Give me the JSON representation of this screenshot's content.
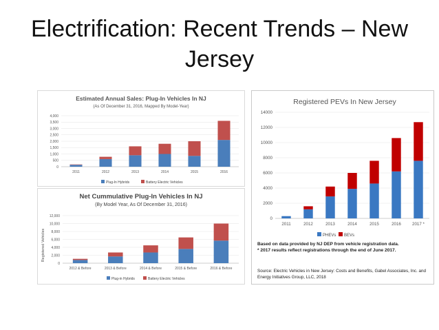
{
  "slide": {
    "title": "Electrification: Recent Trends – New Jersey"
  },
  "colors": {
    "phev": "#4a7ebb",
    "bev": "#c0504d",
    "reg_phev": "#3a78c2",
    "reg_bev": "#c00000"
  },
  "chart_data": [
    {
      "type": "bar",
      "stacked": true,
      "title": "Estimated Annual Sales: Plug-In Vehicles In NJ",
      "subtitle": "(As Of December 31, 2016, Mapped By Model-Year)",
      "categories": [
        "2011",
        "2012",
        "2013",
        "2014",
        "2015",
        "2016"
      ],
      "series": [
        {
          "name": "Plug-In Hybrids",
          "values": [
            150,
            600,
            900,
            1000,
            850,
            2100
          ]
        },
        {
          "name": "Battery Electric Vehicles",
          "values": [
            30,
            180,
            700,
            800,
            1150,
            1500
          ]
        }
      ],
      "ylim": [
        0,
        4000
      ],
      "yticks": [
        "0",
        "500",
        "1,000",
        "1,500",
        "2,000",
        "2,500",
        "3,000",
        "3,500",
        "4,000"
      ],
      "grid": true,
      "legend": "bottom"
    },
    {
      "type": "bar",
      "stacked": true,
      "title": "Net Cummulative Plug-In Vehicles In NJ",
      "subtitle": "(By Model Year, As Of December 31, 2016)",
      "ylabel": "Registered Vehicles",
      "categories": [
        "2012 & Before",
        "2013 & Before",
        "2014 & Before",
        "2015 & Before",
        "2016 & Before"
      ],
      "series": [
        {
          "name": "Plug-in Hybrids",
          "values": [
            800,
            1700,
            2700,
            3600,
            5700
          ]
        },
        {
          "name": "Battery Electric Vehicles",
          "values": [
            300,
            1000,
            1800,
            2900,
            4300
          ]
        }
      ],
      "ylim": [
        0,
        12000
      ],
      "yticks": [
        "0",
        "2,000",
        "4,000",
        "6,000",
        "8,000",
        "10,000",
        "12,000"
      ],
      "grid": true,
      "legend": "bottom"
    },
    {
      "type": "bar",
      "stacked": true,
      "title": "Registered PEVs In New Jersey",
      "categories": [
        "2011",
        "2012",
        "2013",
        "2014",
        "2015",
        "2016",
        "2017 *"
      ],
      "series": [
        {
          "name": "PHEVs",
          "values": [
            300,
            1200,
            2900,
            3900,
            4600,
            6200,
            7600
          ]
        },
        {
          "name": "BEVs",
          "values": [
            0,
            400,
            1300,
            2100,
            3000,
            4400,
            5100
          ]
        }
      ],
      "ylim": [
        0,
        14000
      ],
      "yticks": [
        "0",
        "2000",
        "4000",
        "6000",
        "8000",
        "10000",
        "12000",
        "14000"
      ],
      "grid": true,
      "legend": "bottom"
    }
  ],
  "registered_note": {
    "line1": "Based on data provided by NJ DEP from vehicle registration data.",
    "line2": "* 2017 results reflect registrations through the end of June 2017."
  },
  "source": "Source: Electric Vehicles in New Jersey: Costs and Benefits, Gabel Associates, Inc. and Energy Initiatives Group, LLC, 2018"
}
